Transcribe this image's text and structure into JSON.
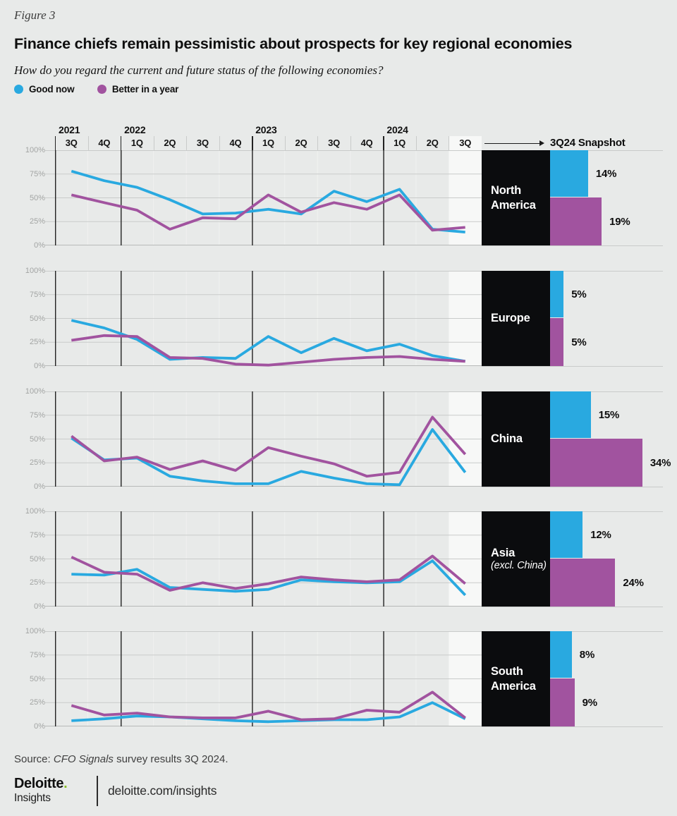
{
  "figure_label": "Figure 3",
  "title": "Finance chiefs remain pessimistic about prospects for key regional economies",
  "subtitle": "How do you regard the current and future status of the following economies?",
  "legend": [
    {
      "label": "Good now",
      "color": "#29a9e0"
    },
    {
      "label": "Better in a year",
      "color": "#a1539f"
    }
  ],
  "snapshot_header": "3Q24 Snapshot",
  "colors": {
    "good_now": "#29a9e0",
    "better_in_year": "#a1539f",
    "panel_black": "#0b0c0e",
    "highlight_column": "#f7f8f7",
    "gridline": "#c9cbca",
    "background": "#e8eae9",
    "year_line": "#222222",
    "green_dot": "#86bc25"
  },
  "axis": {
    "years": [
      {
        "label": "2021",
        "quarters": [
          "3Q",
          "4Q"
        ]
      },
      {
        "label": "2022",
        "quarters": [
          "1Q",
          "2Q",
          "3Q",
          "4Q"
        ]
      },
      {
        "label": "2023",
        "quarters": [
          "1Q",
          "2Q",
          "3Q",
          "4Q"
        ]
      },
      {
        "label": "2024",
        "quarters": [
          "1Q",
          "2Q",
          "3Q"
        ]
      }
    ],
    "y_ticks": [
      "100%",
      "75%",
      "50%",
      "25%",
      "0%"
    ],
    "highlighted_quarter": "3Q 2024"
  },
  "chart_data": [
    {
      "type": "line",
      "id": "north-america",
      "region": "North America",
      "region_sub": "",
      "categories": [
        "3Q 2021",
        "4Q 2021",
        "1Q 2022",
        "2Q 2022",
        "3Q 2022",
        "4Q 2022",
        "1Q 2023",
        "2Q 2023",
        "3Q 2023",
        "4Q 2023",
        "1Q 2024",
        "2Q 2024",
        "3Q 2024"
      ],
      "ylim": [
        0,
        100
      ],
      "series": [
        {
          "name": "Good now",
          "values": [
            78,
            68,
            61,
            48,
            33,
            34,
            38,
            33,
            57,
            46,
            59,
            17,
            14
          ]
        },
        {
          "name": "Better in a year",
          "values": [
            53,
            45,
            37,
            17,
            29,
            28,
            53,
            35,
            45,
            38,
            53,
            16,
            19
          ]
        }
      ],
      "snapshot": {
        "good_now": 14,
        "better_in_year": 19
      }
    },
    {
      "type": "line",
      "id": "europe",
      "region": "Europe",
      "region_sub": "",
      "categories": [
        "3Q 2021",
        "4Q 2021",
        "1Q 2022",
        "2Q 2022",
        "3Q 2022",
        "4Q 2022",
        "1Q 2023",
        "2Q 2023",
        "3Q 2023",
        "4Q 2023",
        "1Q 2024",
        "2Q 2024",
        "3Q 2024"
      ],
      "ylim": [
        0,
        100
      ],
      "series": [
        {
          "name": "Good now",
          "values": [
            48,
            40,
            28,
            7,
            9,
            8,
            31,
            14,
            29,
            16,
            23,
            11,
            5
          ]
        },
        {
          "name": "Better in a year",
          "values": [
            27,
            32,
            31,
            9,
            8,
            2,
            1,
            4,
            7,
            9,
            10,
            7,
            5
          ]
        }
      ],
      "snapshot": {
        "good_now": 5,
        "better_in_year": 5
      }
    },
    {
      "type": "line",
      "id": "china",
      "region": "China",
      "region_sub": "",
      "categories": [
        "3Q 2021",
        "4Q 2021",
        "1Q 2022",
        "2Q 2022",
        "3Q 2022",
        "4Q 2022",
        "1Q 2023",
        "2Q 2023",
        "3Q 2023",
        "4Q 2023",
        "1Q 2024",
        "2Q 2024",
        "3Q 2024"
      ],
      "ylim": [
        0,
        100
      ],
      "series": [
        {
          "name": "Good now",
          "values": [
            51,
            28,
            30,
            11,
            6,
            3,
            3,
            16,
            9,
            3,
            2,
            60,
            15
          ]
        },
        {
          "name": "Better in a year",
          "values": [
            53,
            27,
            31,
            18,
            27,
            17,
            41,
            32,
            24,
            11,
            15,
            73,
            34
          ]
        }
      ],
      "snapshot": {
        "good_now": 15,
        "better_in_year": 34
      }
    },
    {
      "type": "line",
      "id": "asia-excl-china",
      "region": "Asia",
      "region_sub": "(excl. China)",
      "categories": [
        "3Q 2021",
        "4Q 2021",
        "1Q 2022",
        "2Q 2022",
        "3Q 2022",
        "4Q 2022",
        "1Q 2023",
        "2Q 2023",
        "3Q 2023",
        "4Q 2023",
        "1Q 2024",
        "2Q 2024",
        "3Q 2024"
      ],
      "ylim": [
        0,
        100
      ],
      "series": [
        {
          "name": "Good now",
          "values": [
            34,
            33,
            39,
            20,
            18,
            16,
            18,
            28,
            26,
            25,
            26,
            48,
            12
          ]
        },
        {
          "name": "Better in a year",
          "values": [
            52,
            36,
            34,
            17,
            25,
            19,
            24,
            31,
            28,
            26,
            28,
            53,
            24
          ]
        }
      ],
      "snapshot": {
        "good_now": 12,
        "better_in_year": 24
      }
    },
    {
      "type": "line",
      "id": "south-america",
      "region": "South America",
      "region_sub": "",
      "categories": [
        "3Q 2021",
        "4Q 2021",
        "1Q 2022",
        "2Q 2022",
        "3Q 2022",
        "4Q 2022",
        "1Q 2023",
        "2Q 2023",
        "3Q 2023",
        "4Q 2023",
        "1Q 2024",
        "2Q 2024",
        "3Q 2024"
      ],
      "ylim": [
        0,
        100
      ],
      "series": [
        {
          "name": "Good now",
          "values": [
            6,
            8,
            11,
            10,
            8,
            6,
            5,
            6,
            7,
            7,
            10,
            25,
            8
          ]
        },
        {
          "name": "Better in a year",
          "values": [
            22,
            12,
            14,
            10,
            9,
            9,
            16,
            7,
            8,
            17,
            15,
            36,
            9
          ]
        }
      ],
      "snapshot": {
        "good_now": 8,
        "better_in_year": 9
      }
    }
  ],
  "source": {
    "prefix": "Source: ",
    "italic": "CFO Signals",
    "suffix": " survey results 3Q 2024."
  },
  "footer": {
    "brand_top": "Deloitte",
    "brand_dot": ".",
    "brand_bottom": "Insights",
    "link": "deloitte.com/insights"
  }
}
